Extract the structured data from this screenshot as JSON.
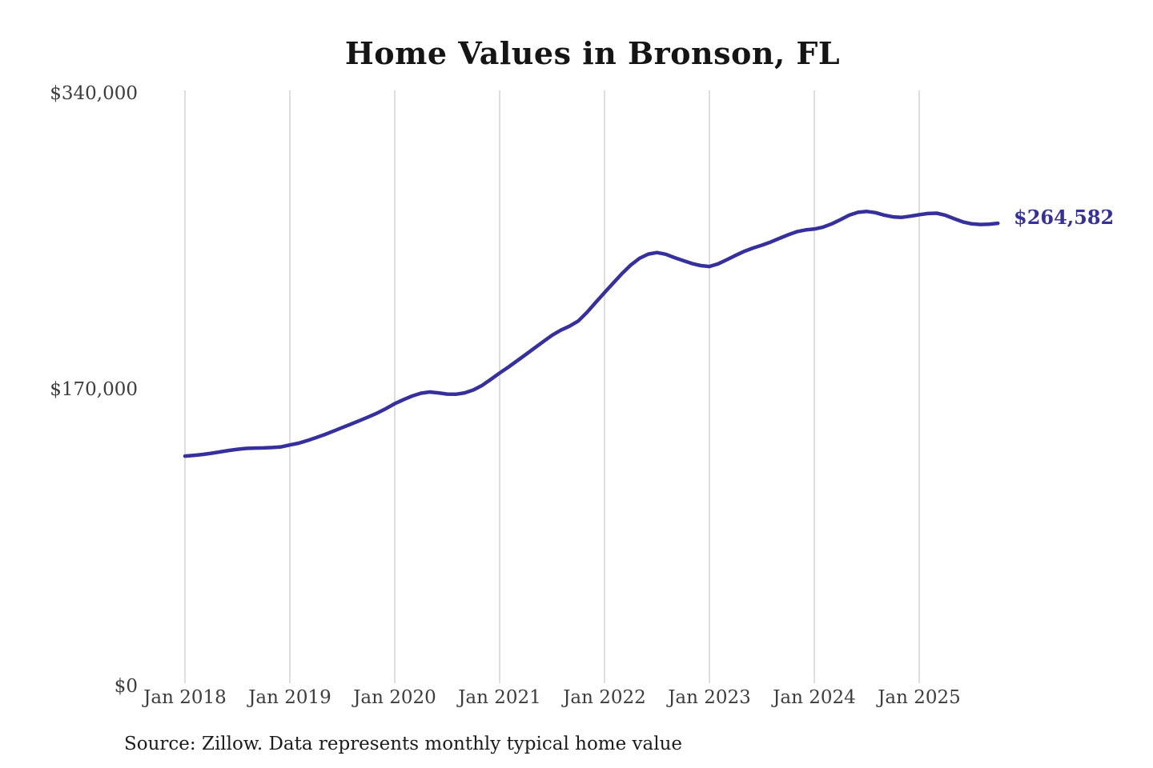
{
  "chart_data": {
    "type": "line",
    "title": "Home Values in Bronson, FL",
    "source_note": "Source: Zillow. Data represents monthly typical home value",
    "unit": "USD",
    "frequency": "monthly",
    "x_start": "2018-01",
    "x_end": "2025-10",
    "x_tick_labels": [
      "Jan 2018",
      "Jan 2019",
      "Jan 2020",
      "Jan 2021",
      "Jan 2022",
      "Jan 2023",
      "Jan 2024",
      "Jan 2025"
    ],
    "y_tick_labels": [
      "$340,000",
      "$170,000",
      "$0"
    ],
    "ylim": [
      0,
      340000
    ],
    "y_tick_values": [
      340000,
      170000,
      0
    ],
    "grid": "vertical-only",
    "legend": "none",
    "line_color": "#36309E",
    "gridline_color": "#cccccc",
    "end_label": "$264,582",
    "end_value": 264582,
    "series": [
      {
        "name": "Typical home value",
        "values": [
          130900,
          131300,
          131800,
          132500,
          133300,
          134100,
          134800,
          135300,
          135500,
          135600,
          135800,
          136200,
          137300,
          138300,
          139800,
          141500,
          143300,
          145300,
          147300,
          149300,
          151300,
          153400,
          155600,
          158200,
          161000,
          163300,
          165400,
          167000,
          167700,
          167200,
          166500,
          166400,
          167200,
          168900,
          171500,
          175000,
          178600,
          182000,
          185600,
          189300,
          193000,
          196700,
          200300,
          203200,
          205500,
          208500,
          213500,
          219200,
          224800,
          230300,
          235700,
          240600,
          244500,
          246900,
          247800,
          246800,
          244900,
          243200,
          241500,
          240300,
          239800,
          241300,
          243700,
          246200,
          248500,
          250400,
          252000,
          253800,
          255900,
          258000,
          259800,
          260800,
          261300,
          262400,
          264300,
          266700,
          269300,
          270900,
          271400,
          270700,
          269300,
          268300,
          268000,
          268700,
          269500,
          270200,
          270400,
          269200,
          267200,
          265400,
          264300,
          263900,
          264100,
          264582
        ]
      }
    ]
  }
}
